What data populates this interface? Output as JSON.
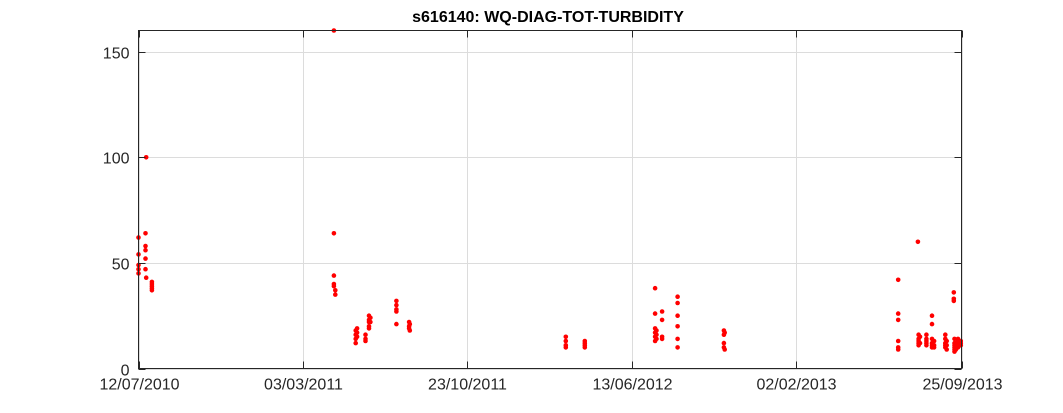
{
  "chart_data": {
    "type": "scatter",
    "title": "s616140: WQ-DIAG-TOT-TURBIDITY",
    "xlabel": "",
    "ylabel": "",
    "x_type": "date",
    "xlim": [
      "2010-07-12",
      "2013-09-25"
    ],
    "ylim": [
      0,
      160
    ],
    "x_ticks": [
      "2010-07-12",
      "2011-03-03",
      "2011-10-23",
      "2012-06-13",
      "2013-02-02",
      "2013-09-25"
    ],
    "x_tick_labels": [
      "12/07/2010",
      "03/03/2011",
      "23/10/2011",
      "13/06/2012",
      "02/02/2013",
      "25/09/2013"
    ],
    "y_ticks": [
      0,
      50,
      100,
      150
    ],
    "y_tick_labels": [
      "0",
      "50",
      "100",
      "150"
    ],
    "grid": true,
    "marker_color": "#ff0000",
    "series": [
      {
        "values": [
          [
            "2010-07-12",
            62
          ],
          [
            "2010-07-12",
            54
          ],
          [
            "2010-07-12",
            49
          ],
          [
            "2010-07-12",
            47
          ],
          [
            "2010-07-12",
            45
          ],
          [
            "2010-07-22",
            64
          ],
          [
            "2010-07-22",
            58
          ],
          [
            "2010-07-22",
            56
          ],
          [
            "2010-07-22",
            52
          ],
          [
            "2010-07-22",
            47
          ],
          [
            "2010-07-23",
            100
          ],
          [
            "2010-07-23",
            43
          ],
          [
            "2010-07-31",
            41
          ],
          [
            "2010-07-31",
            40
          ],
          [
            "2010-07-31",
            39
          ],
          [
            "2010-07-31",
            38
          ],
          [
            "2010-07-31",
            37
          ],
          [
            "2011-04-16",
            160
          ],
          [
            "2011-04-16",
            64
          ],
          [
            "2011-04-16",
            44
          ],
          [
            "2011-04-16",
            40
          ],
          [
            "2011-04-16",
            39
          ],
          [
            "2011-04-18",
            37
          ],
          [
            "2011-04-18",
            35
          ],
          [
            "2011-05-17",
            18
          ],
          [
            "2011-05-17",
            16
          ],
          [
            "2011-05-17",
            14
          ],
          [
            "2011-05-17",
            12
          ],
          [
            "2011-05-19",
            19
          ],
          [
            "2011-05-19",
            17
          ],
          [
            "2011-05-19",
            15
          ],
          [
            "2011-05-31",
            16
          ],
          [
            "2011-05-31",
            14
          ],
          [
            "2011-05-31",
            13
          ],
          [
            "2011-06-05",
            25
          ],
          [
            "2011-06-05",
            23
          ],
          [
            "2011-06-05",
            22
          ],
          [
            "2011-06-05",
            20
          ],
          [
            "2011-06-05",
            19
          ],
          [
            "2011-06-07",
            24
          ],
          [
            "2011-06-07",
            22
          ],
          [
            "2011-07-14",
            32
          ],
          [
            "2011-07-14",
            30
          ],
          [
            "2011-07-14",
            28
          ],
          [
            "2011-07-14",
            27
          ],
          [
            "2011-07-14",
            21
          ],
          [
            "2011-08-01",
            22
          ],
          [
            "2011-08-01",
            20
          ],
          [
            "2011-08-01",
            19
          ],
          [
            "2011-08-02",
            21
          ],
          [
            "2011-08-02",
            18
          ],
          [
            "2012-03-11",
            15
          ],
          [
            "2012-03-11",
            13
          ],
          [
            "2012-03-11",
            11
          ],
          [
            "2012-03-11",
            10
          ],
          [
            "2012-04-07",
            13
          ],
          [
            "2012-04-07",
            12
          ],
          [
            "2012-04-07",
            11
          ],
          [
            "2012-04-07",
            10
          ],
          [
            "2012-07-16",
            38
          ],
          [
            "2012-07-16",
            26
          ],
          [
            "2012-07-16",
            19
          ],
          [
            "2012-07-16",
            17
          ],
          [
            "2012-07-16",
            15
          ],
          [
            "2012-07-16",
            13
          ],
          [
            "2012-07-18",
            18
          ],
          [
            "2012-07-18",
            16
          ],
          [
            "2012-07-18",
            14
          ],
          [
            "2012-07-26",
            27
          ],
          [
            "2012-07-26",
            23
          ],
          [
            "2012-07-26",
            15
          ],
          [
            "2012-07-26",
            14
          ],
          [
            "2012-08-17",
            34
          ],
          [
            "2012-08-17",
            31
          ],
          [
            "2012-08-17",
            25
          ],
          [
            "2012-08-17",
            20
          ],
          [
            "2012-08-17",
            14
          ],
          [
            "2012-08-17",
            10
          ],
          [
            "2012-10-22",
            18
          ],
          [
            "2012-10-22",
            16
          ],
          [
            "2012-10-22",
            12
          ],
          [
            "2012-10-22",
            10
          ],
          [
            "2012-10-23",
            17
          ],
          [
            "2012-10-23",
            9
          ],
          [
            "2013-06-27",
            42
          ],
          [
            "2013-06-27",
            26
          ],
          [
            "2013-06-27",
            23
          ],
          [
            "2013-06-27",
            13
          ],
          [
            "2013-06-27",
            10
          ],
          [
            "2013-06-27",
            9
          ],
          [
            "2013-07-25",
            60
          ],
          [
            "2013-07-26",
            16
          ],
          [
            "2013-07-26",
            14
          ],
          [
            "2013-07-26",
            13
          ],
          [
            "2013-07-26",
            12
          ],
          [
            "2013-07-26",
            11
          ],
          [
            "2013-07-28",
            15
          ],
          [
            "2013-07-28",
            12
          ],
          [
            "2013-08-06",
            16
          ],
          [
            "2013-08-06",
            14
          ],
          [
            "2013-08-06",
            13
          ],
          [
            "2013-08-06",
            12
          ],
          [
            "2013-08-06",
            11
          ],
          [
            "2013-08-14",
            25
          ],
          [
            "2013-08-14",
            21
          ],
          [
            "2013-08-14",
            14
          ],
          [
            "2013-08-14",
            12
          ],
          [
            "2013-08-14",
            11
          ],
          [
            "2013-08-14",
            10
          ],
          [
            "2013-08-17",
            13
          ],
          [
            "2013-08-17",
            11
          ],
          [
            "2013-08-17",
            10
          ],
          [
            "2013-09-02",
            16
          ],
          [
            "2013-09-02",
            14
          ],
          [
            "2013-09-02",
            12
          ],
          [
            "2013-09-02",
            11
          ],
          [
            "2013-09-02",
            10
          ],
          [
            "2013-09-04",
            13
          ],
          [
            "2013-09-04",
            11
          ],
          [
            "2013-09-04",
            9
          ],
          [
            "2013-09-14",
            36
          ],
          [
            "2013-09-14",
            33
          ],
          [
            "2013-09-14",
            32
          ],
          [
            "2013-09-15",
            14
          ],
          [
            "2013-09-15",
            12
          ],
          [
            "2013-09-15",
            11
          ],
          [
            "2013-09-15",
            10
          ],
          [
            "2013-09-15",
            9
          ],
          [
            "2013-09-15",
            8
          ],
          [
            "2013-09-17",
            12
          ],
          [
            "2013-09-17",
            11
          ],
          [
            "2013-09-17",
            10
          ],
          [
            "2013-09-17",
            9
          ],
          [
            "2013-09-20",
            14
          ],
          [
            "2013-09-20",
            13
          ],
          [
            "2013-09-20",
            12
          ],
          [
            "2013-09-20",
            11
          ],
          [
            "2013-09-20",
            10
          ],
          [
            "2013-09-24",
            13
          ],
          [
            "2013-09-24",
            12
          ],
          [
            "2013-09-24",
            11
          ]
        ]
      }
    ]
  }
}
